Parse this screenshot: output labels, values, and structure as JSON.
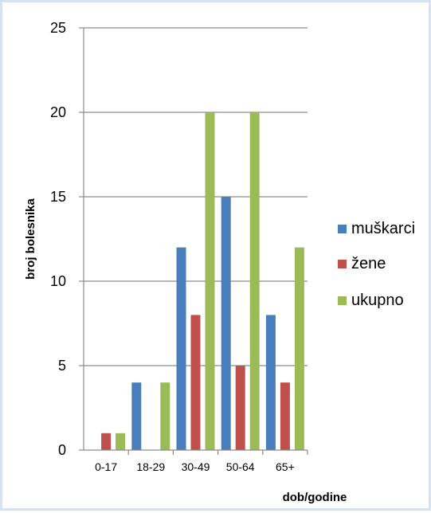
{
  "chart_data": {
    "type": "bar",
    "categories": [
      "0-17",
      "18-29",
      "30-49",
      "50-64",
      "65+"
    ],
    "series": [
      {
        "name": "muškarci",
        "values": [
          0,
          4,
          12,
          15,
          8
        ],
        "color": "#4a7ebb"
      },
      {
        "name": "žene",
        "values": [
          1,
          0,
          8,
          5,
          4
        ],
        "color": "#c0504d"
      },
      {
        "name": "ukupno",
        "values": [
          1,
          4,
          20,
          20,
          12
        ],
        "color": "#9bbb59"
      }
    ],
    "xlabel": "dob/godine",
    "ylabel": "broj bolesnika",
    "ylim": [
      0,
      25
    ],
    "yticks": [
      "0",
      "5",
      "10",
      "15",
      "20",
      "25"
    ],
    "grid": true,
    "legend": "right"
  }
}
